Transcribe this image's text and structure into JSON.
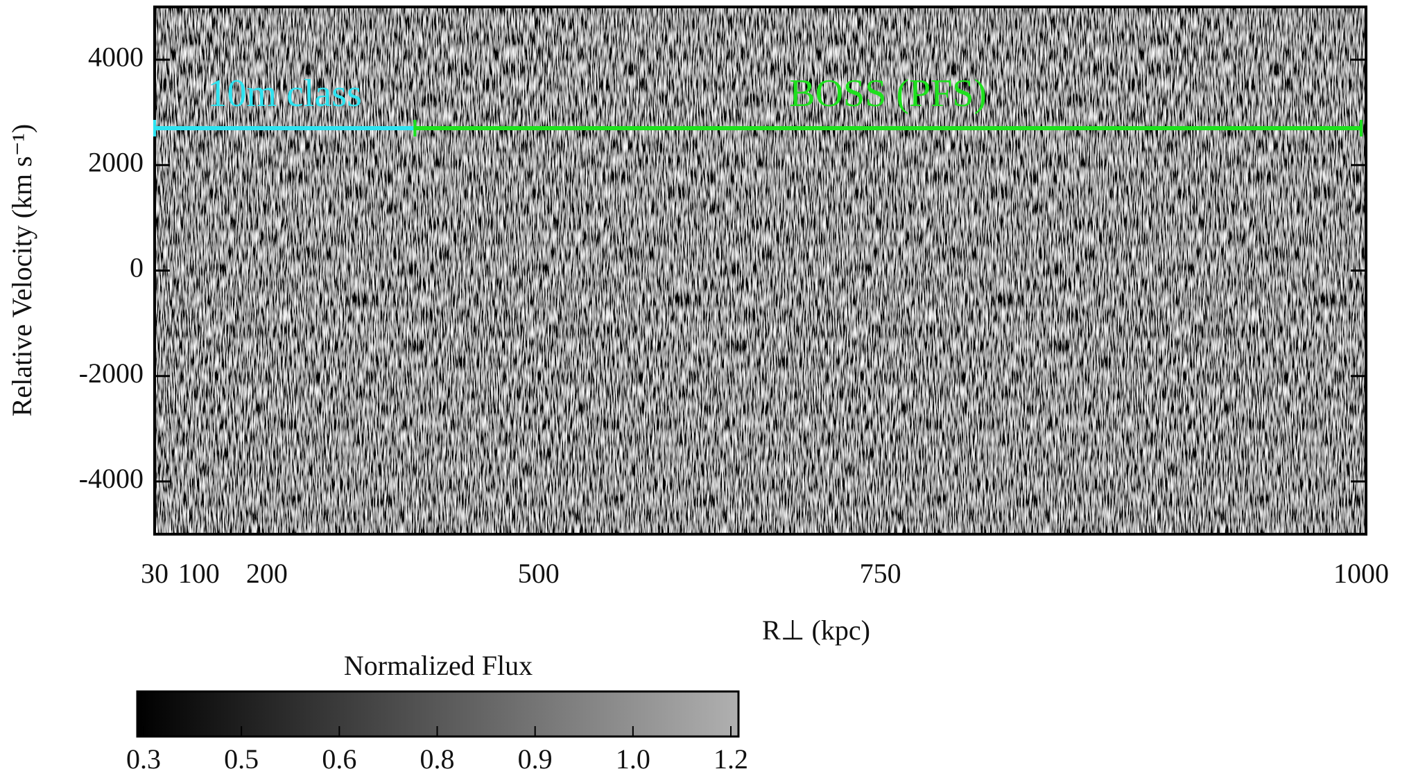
{
  "chart_data": {
    "type": "heatmap",
    "xlabel": "R⊥ (kpc)",
    "ylabel": "Relative Velocity (km s⁻¹)",
    "xlim": [
      30,
      1000
    ],
    "xticks": [
      30,
      100,
      200,
      500,
      750,
      1000
    ],
    "ylim": [
      -5000,
      5000
    ],
    "yticks": [
      -4000,
      -2000,
      0,
      2000,
      4000
    ],
    "annotations": [
      {
        "text": "10m class",
        "color": "#2ee3f0",
        "range": [
          30,
          380
        ]
      },
      {
        "text": "BOSS (PFS)",
        "color": "#1ee01e",
        "range": [
          380,
          1000
        ]
      }
    ],
    "colorbar": {
      "label": "Normalized Flux",
      "ticks": [
        0.3,
        0.5,
        0.6,
        0.8,
        0.9,
        {
          "value": 1,
          "label": "1.0"
        },
        1.2
      ],
      "colors": [
        "#000000",
        "#b0b0b0"
      ]
    }
  }
}
